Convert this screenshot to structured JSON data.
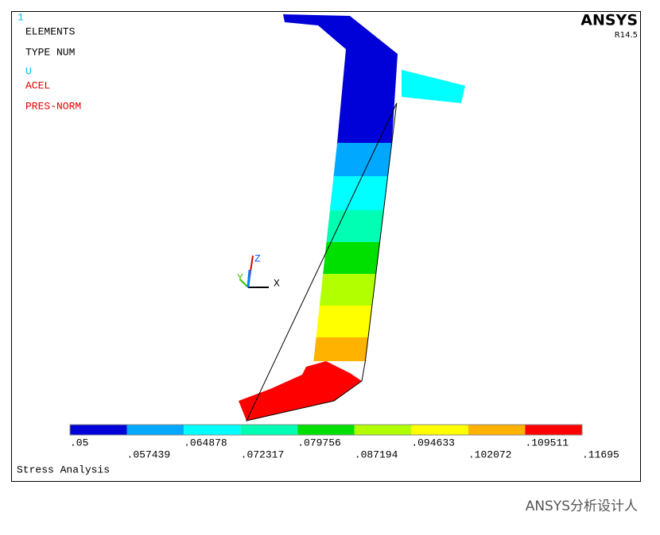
{
  "window": {
    "number": "1",
    "brand": "ANSYS",
    "version": "R14.5",
    "info_lines": [
      "ELEMENTS",
      "TYPE NUM",
      "U",
      "ACEL",
      "PRES-NORM"
    ],
    "footer": "Stress Analysis",
    "axes": [
      "X",
      "Y",
      "Z"
    ]
  },
  "legend": {
    "colors": [
      "#0000d8",
      "#00a8ff",
      "#00ffff",
      "#00ffb2",
      "#00e000",
      "#b2ff00",
      "#ffff00",
      "#ffb200",
      "#ff0000"
    ],
    "labels_top": [
      ".05",
      ".064878",
      ".079756",
      ".094633",
      ".109511"
    ],
    "labels_bottom": [
      ".057439",
      ".072317",
      ".087194",
      ".102072",
      ".11695"
    ]
  },
  "watermark": "ANSYS分析设计人"
}
